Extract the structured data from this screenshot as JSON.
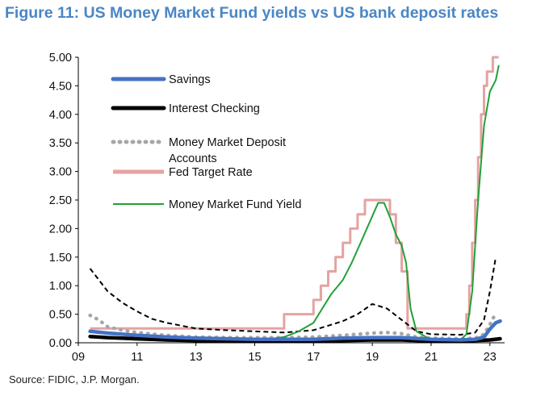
{
  "title": "Figure 11: US Money Market Fund yields vs US bank deposit rates",
  "source": "Source: FIDIC, J.P. Morgan.",
  "chart_data": {
    "type": "line",
    "xlim": [
      9,
      23.5
    ],
    "ylim": [
      0,
      5
    ],
    "x_ticks": [
      9,
      11,
      13,
      15,
      17,
      19,
      21,
      23
    ],
    "x_tick_labels": [
      "09",
      "11",
      "13",
      "15",
      "17",
      "19",
      "21",
      "23"
    ],
    "y_ticks": [
      0,
      0.5,
      1,
      1.5,
      2,
      2.5,
      3,
      3.5,
      4,
      4.5,
      5
    ],
    "y_tick_labels": [
      "0.00",
      "0.50",
      "1.00",
      "1.50",
      "2.00",
      "2.50",
      "3.00",
      "3.50",
      "4.00",
      "4.50",
      "5.00"
    ],
    "legend_placement": "top-left",
    "series": [
      {
        "name": "Savings",
        "color": "#4472c4",
        "style": "solid-thick",
        "x": [
          9.4,
          10,
          11,
          12,
          13,
          14,
          15,
          16,
          17,
          18,
          19,
          20,
          21,
          22,
          22.5,
          22.8,
          23.0,
          23.2,
          23.35
        ],
        "y": [
          0.2,
          0.17,
          0.13,
          0.1,
          0.08,
          0.07,
          0.06,
          0.06,
          0.06,
          0.08,
          0.09,
          0.09,
          0.06,
          0.05,
          0.06,
          0.1,
          0.24,
          0.35,
          0.38
        ]
      },
      {
        "name": "Interest Checking",
        "color": "#000000",
        "style": "solid-thick",
        "x": [
          9.4,
          10,
          11,
          12,
          13,
          14,
          15,
          16,
          17,
          18,
          19,
          20,
          21,
          22,
          23,
          23.35
        ],
        "y": [
          0.11,
          0.09,
          0.07,
          0.05,
          0.04,
          0.04,
          0.04,
          0.03,
          0.03,
          0.04,
          0.05,
          0.05,
          0.03,
          0.03,
          0.05,
          0.07
        ]
      },
      {
        "name": "Money Market Deposit Accounts",
        "color": "#a6a6a6",
        "style": "dotted",
        "x": [
          9.4,
          9.7,
          10,
          10.5,
          11,
          12,
          13,
          14,
          15,
          16,
          17,
          18,
          18.5,
          19,
          19.5,
          20,
          20.5,
          21,
          22,
          22.5,
          22.8,
          23.0,
          23.2
        ],
        "y": [
          0.48,
          0.4,
          0.28,
          0.22,
          0.18,
          0.13,
          0.1,
          0.09,
          0.09,
          0.09,
          0.1,
          0.13,
          0.15,
          0.17,
          0.18,
          0.16,
          0.1,
          0.08,
          0.07,
          0.08,
          0.15,
          0.32,
          0.52
        ]
      },
      {
        "name": "Fed Target Rate",
        "color": "#e6a2a2",
        "style": "step",
        "x": [
          9.4,
          16.0,
          16.0,
          17.0,
          17.0,
          17.25,
          17.25,
          17.5,
          17.5,
          17.75,
          17.75,
          18.0,
          18.0,
          18.25,
          18.25,
          18.5,
          18.5,
          18.75,
          18.75,
          19.0,
          19.0,
          19.6,
          19.6,
          19.8,
          19.8,
          20.0,
          20.0,
          20.2,
          20.2,
          22.2,
          22.2,
          22.3,
          22.3,
          22.4,
          22.4,
          22.5,
          22.5,
          22.6,
          22.6,
          22.7,
          22.7,
          22.8,
          22.8,
          22.9,
          22.9,
          23.1,
          23.1,
          23.3
        ],
        "y": [
          0.25,
          0.25,
          0.5,
          0.5,
          0.75,
          0.75,
          1.0,
          1.0,
          1.25,
          1.25,
          1.5,
          1.5,
          1.75,
          1.75,
          2.0,
          2.0,
          2.25,
          2.25,
          2.5,
          2.5,
          2.5,
          2.5,
          2.25,
          2.25,
          1.75,
          1.75,
          1.25,
          1.25,
          0.25,
          0.25,
          0.5,
          0.5,
          1.0,
          1.0,
          1.75,
          1.75,
          2.5,
          2.5,
          3.25,
          3.25,
          4.0,
          4.0,
          4.5,
          4.5,
          4.75,
          4.75,
          5.0,
          5.0
        ]
      },
      {
        "name": "Money Market Fund Yield",
        "color": "#22a038",
        "style": "solid",
        "x": [
          9.4,
          9.6,
          10,
          11,
          12,
          13,
          14,
          15,
          16,
          16.5,
          17,
          17.3,
          17.6,
          18,
          18.3,
          18.6,
          18.9,
          19.2,
          19.4,
          19.6,
          19.8,
          20.0,
          20.15,
          20.3,
          20.5,
          21,
          22,
          22.2,
          22.4,
          22.6,
          22.8,
          23.0,
          23.2,
          23.3
        ],
        "y": [
          0.1,
          0.12,
          0.08,
          0.05,
          0.04,
          0.03,
          0.03,
          0.03,
          0.1,
          0.2,
          0.35,
          0.6,
          0.85,
          1.1,
          1.4,
          1.75,
          2.1,
          2.45,
          2.45,
          2.2,
          1.9,
          1.7,
          1.4,
          0.6,
          0.2,
          0.05,
          0.05,
          0.15,
          0.9,
          2.5,
          3.8,
          4.4,
          4.6,
          4.85
        ]
      },
      {
        "color": "#000000",
        "style": "dashed",
        "x": [
          9.4,
          9.7,
          10,
          10.5,
          11,
          11.5,
          12,
          13,
          14,
          15,
          16,
          17,
          17.5,
          18,
          18.5,
          19,
          19.5,
          20,
          20.5,
          21,
          22,
          22.5,
          22.8,
          23.0,
          23.2
        ],
        "y": [
          1.3,
          1.1,
          0.9,
          0.7,
          0.55,
          0.42,
          0.35,
          0.25,
          0.22,
          0.2,
          0.18,
          0.22,
          0.3,
          0.38,
          0.5,
          0.68,
          0.6,
          0.4,
          0.2,
          0.15,
          0.14,
          0.18,
          0.4,
          0.9,
          1.5
        ]
      }
    ]
  }
}
